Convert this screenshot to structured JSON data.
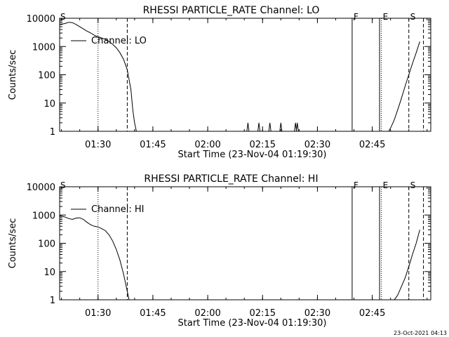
{
  "footer": {
    "timestamp": "23-Oct-2021 04:13"
  },
  "chart_data": [
    {
      "type": "line",
      "title": "RHESSI PARTICLE_RATE Channel: LO",
      "xlabel": "Start Time (23-Nov-04 01:19:30)",
      "ylabel": "Counts/sec",
      "yscale": "log",
      "xlim": [
        "01:19:30",
        "03:01:00"
      ],
      "ylim": [
        1,
        10000
      ],
      "ytick_labels": [
        "1",
        "10",
        "100",
        "1000",
        "10000"
      ],
      "xtick_labels": [
        "01:30",
        "01:45",
        "02:00",
        "02:15",
        "02:30",
        "02:45"
      ],
      "legend": "upper-left",
      "series": [
        {
          "name": "Channel: LO",
          "x": [
            "01:19:30",
            "01:21:00",
            "01:22:00",
            "01:23:00",
            "01:24:00",
            "01:25:00",
            "01:26:00",
            "01:27:00",
            "01:28:00",
            "01:29:00",
            "01:30:00",
            "01:31:00",
            "01:32:00",
            "01:33:00",
            "01:34:00",
            "01:35:00",
            "01:36:00",
            "01:37:00",
            "01:38:00",
            "01:39:00",
            "01:39:30",
            "01:40:00",
            "01:40:30",
            "01:41:00",
            "02:31:30"
          ],
          "values": [
            6000,
            6500,
            7200,
            7000,
            6000,
            5000,
            4200,
            3500,
            3000,
            2500,
            2200,
            2000,
            1800,
            1500,
            1200,
            900,
            600,
            350,
            150,
            30,
            6,
            2,
            1,
            1,
            1
          ],
          "spikes": [
            "02:11:00",
            "02:14:00",
            "02:17:00",
            "02:20:00",
            "02:24:00",
            "02:24:30"
          ]
        },
        {
          "name": "",
          "x": [
            "02:49:30",
            "02:50:00",
            "02:51:00",
            "02:52:00",
            "02:53:00",
            "02:54:00",
            "02:55:00",
            "02:56:00",
            "02:57:00",
            "02:58:00"
          ],
          "values": [
            1,
            1.3,
            2.5,
            6,
            15,
            40,
            100,
            250,
            600,
            1500
          ]
        }
      ],
      "markers": [
        {
          "time": "01:30:00",
          "style": "dotted",
          "label": ""
        },
        {
          "time": "01:38:00",
          "style": "dashed",
          "label": ""
        },
        {
          "time": "01:19:30",
          "style": "none",
          "label": "S"
        },
        {
          "time": "02:39:30",
          "style": "solid",
          "label": "F"
        },
        {
          "time": "02:47:00",
          "style": "solid",
          "label": ""
        },
        {
          "time": "02:47:30",
          "style": "dotted",
          "label": "E"
        },
        {
          "time": "02:55:00",
          "style": "dashed",
          "label": "S"
        },
        {
          "time": "02:59:00",
          "style": "dashed",
          "label": ""
        }
      ]
    },
    {
      "type": "line",
      "title": "RHESSI PARTICLE_RATE Channel: HI",
      "xlabel": "Start Time (23-Nov-04 01:19:30)",
      "ylabel": "Counts/sec",
      "yscale": "log",
      "xlim": [
        "01:19:30",
        "03:01:00"
      ],
      "ylim": [
        1,
        10000
      ],
      "ytick_labels": [
        "1",
        "10",
        "100",
        "1000",
        "10000"
      ],
      "xtick_labels": [
        "01:30",
        "01:45",
        "02:00",
        "02:15",
        "02:30",
        "02:45"
      ],
      "legend": "upper-left",
      "series": [
        {
          "name": "Channel: HI",
          "x": [
            "01:19:30",
            "01:21:00",
            "01:22:00",
            "01:23:00",
            "01:24:00",
            "01:25:00",
            "01:26:00",
            "01:27:00",
            "01:28:00",
            "01:29:00",
            "01:30:00",
            "01:31:00",
            "01:32:00",
            "01:33:00",
            "01:34:00",
            "01:35:00",
            "01:36:00",
            "01:37:00",
            "01:38:00",
            "01:38:30",
            "01:39:00"
          ],
          "values": [
            950,
            850,
            750,
            700,
            780,
            800,
            700,
            550,
            450,
            400,
            380,
            330,
            280,
            200,
            120,
            60,
            25,
            8,
            2,
            1,
            1
          ],
          "spikes": []
        },
        {
          "name": "",
          "x": [
            "02:51:00",
            "02:51:30",
            "02:52:00",
            "02:53:00",
            "02:54:00",
            "02:55:00",
            "02:56:00",
            "02:57:00",
            "02:58:00"
          ],
          "values": [
            1,
            1.2,
            1.5,
            3,
            6,
            15,
            40,
            100,
            300
          ]
        }
      ],
      "markers": [
        {
          "time": "01:30:00",
          "style": "dotted",
          "label": ""
        },
        {
          "time": "01:38:00",
          "style": "dashed",
          "label": ""
        },
        {
          "time": "01:19:30",
          "style": "none",
          "label": "S"
        },
        {
          "time": "02:39:30",
          "style": "solid",
          "label": "F"
        },
        {
          "time": "02:47:00",
          "style": "solid",
          "label": ""
        },
        {
          "time": "02:47:30",
          "style": "dotted",
          "label": "E"
        },
        {
          "time": "02:55:00",
          "style": "dashed",
          "label": "S"
        },
        {
          "time": "02:59:00",
          "style": "dashed",
          "label": ""
        }
      ]
    }
  ]
}
